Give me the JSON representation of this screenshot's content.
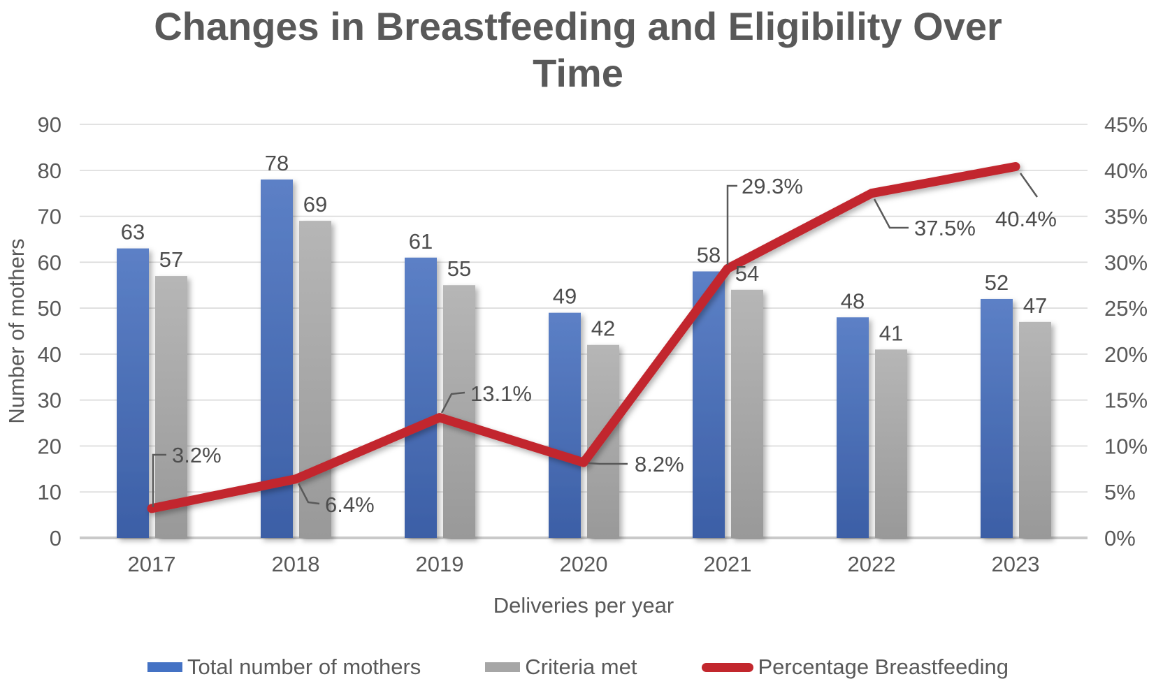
{
  "title": "Changes in Breastfeeding and Eligibility Over Time",
  "title_lines": [
    "Changes in Breastfeeding and Eligibility Over",
    "Time"
  ],
  "chart_data": {
    "type": "combo-bar-line",
    "categories": [
      "2017",
      "2018",
      "2019",
      "2020",
      "2021",
      "2022",
      "2023"
    ],
    "series": [
      {
        "name": "Total number of mothers",
        "chart_type": "bar",
        "axis": "left",
        "color": "#4472C4",
        "values": [
          63,
          78,
          61,
          49,
          58,
          48,
          52
        ],
        "data_labels": [
          "63",
          "78",
          "61",
          "49",
          "58",
          "48",
          "52"
        ]
      },
      {
        "name": "Criteria met",
        "chart_type": "bar",
        "axis": "left",
        "color": "#A6A6A6",
        "values": [
          57,
          69,
          55,
          42,
          54,
          41,
          47
        ],
        "data_labels": [
          "57",
          "69",
          "55",
          "42",
          "54",
          "41",
          "47"
        ]
      },
      {
        "name": "Percentage Breastfeeding",
        "chart_type": "line",
        "axis": "right",
        "color": "#C2272D",
        "values": [
          3.2,
          6.4,
          13.1,
          8.2,
          29.3,
          37.5,
          40.4
        ],
        "data_labels": [
          "3.2%",
          "6.4%",
          "13.1%",
          "8.2%",
          "29.3%",
          "37.5%",
          "40.4%"
        ]
      }
    ],
    "xlabel": "Deliveries per year",
    "ylabel_left": "Number of mothers",
    "left_axis": {
      "min": 0,
      "max": 90,
      "step": 10,
      "tick_labels": [
        "0",
        "10",
        "20",
        "30",
        "40",
        "50",
        "60",
        "70",
        "80",
        "90"
      ]
    },
    "right_axis": {
      "min": 0,
      "max": 45,
      "step": 5,
      "tick_labels": [
        "0%",
        "5%",
        "10%",
        "15%",
        "20%",
        "25%",
        "30%",
        "35%",
        "40%",
        "45%"
      ]
    },
    "grid": "horizontal",
    "legend_position": "bottom"
  },
  "colors": {
    "title_text": "#595959",
    "axis_text": "#595959",
    "data_label_text": "#4D4D4D",
    "gridline": "#D9D9D9",
    "axis_line": "#C9C9C9",
    "leader_line": "#595959",
    "bar_blue_top": "#5C80C6",
    "bar_blue_bottom": "#3C5FA6",
    "bar_gray_top": "#B6B6B6",
    "bar_gray_bottom": "#999999",
    "line_red": "#C2272D"
  }
}
